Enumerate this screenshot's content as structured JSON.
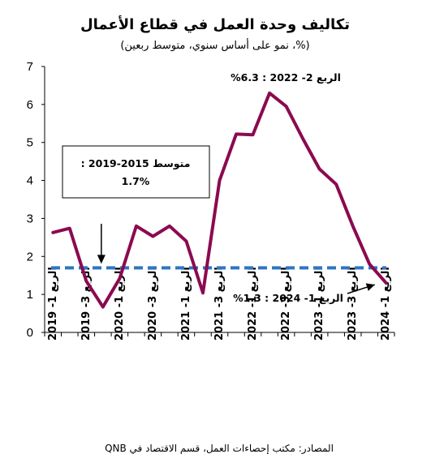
{
  "chart_data": {
    "type": "line",
    "title": "تكاليف وحدة العمل في قطاع الأعمال",
    "subtitle": "(%، نمو على أساس سنوي، متوسط ربعين)",
    "source": "المصادر: مكتب إحصاءات العمل، قسم الاقتصاد في QNB",
    "ylim": [
      0,
      7
    ],
    "yticks": [
      "0",
      "1",
      "2",
      "3",
      "4",
      "5",
      "6",
      "7"
    ],
    "xticks": [
      "الربع 1- 2019",
      "الربع 3- 2019",
      "الربع 1- 2020",
      "الربع 3- 2020",
      "الربع 1- 2021",
      "الربع 3- 2021",
      "الربع 1- 2022",
      "الربع 3- 2022",
      "الربع 1- 2023",
      "الربع 3- 2023",
      "الربع 1- 2024"
    ],
    "x": [
      "الربع 1- 2019",
      "الربع 2- 2019",
      "الربع 3- 2019",
      "الربع 4- 2019",
      "الربع 1- 2020",
      "الربع 2- 2020",
      "الربع 3- 2020",
      "الربع 4- 2020",
      "الربع 1- 2021",
      "الربع 2- 2021",
      "الربع 3- 2021",
      "الربع 4- 2021",
      "الربع 1- 2022",
      "الربع 2- 2022",
      "الربع 3- 2022",
      "الربع 4- 2022",
      "الربع 1- 2023",
      "الربع 2- 2023",
      "الربع 3- 2023",
      "الربع 4- 2023",
      "الربع 1- 2024"
    ],
    "series": [
      {
        "color": "#8B0A50",
        "values": [
          2.63,
          2.74,
          1.35,
          0.67,
          1.42,
          2.8,
          2.53,
          2.8,
          2.4,
          1.04,
          4.0,
          5.22,
          5.2,
          6.3,
          5.95,
          5.1,
          4.3,
          3.9,
          2.8,
          1.8,
          1.3
        ]
      }
    ],
    "reference_line": {
      "value": 1.7,
      "color": "#2E75C4",
      "style": "dashed"
    },
    "annotations": {
      "avg_box": [
        "متوسط 2015-2019 :",
        "1.7%"
      ],
      "peak_label": "الربع 2- 2022 : 6.3%",
      "last_label": "الربع 1- 2024 : 1.3%"
    },
    "grid": false
  }
}
